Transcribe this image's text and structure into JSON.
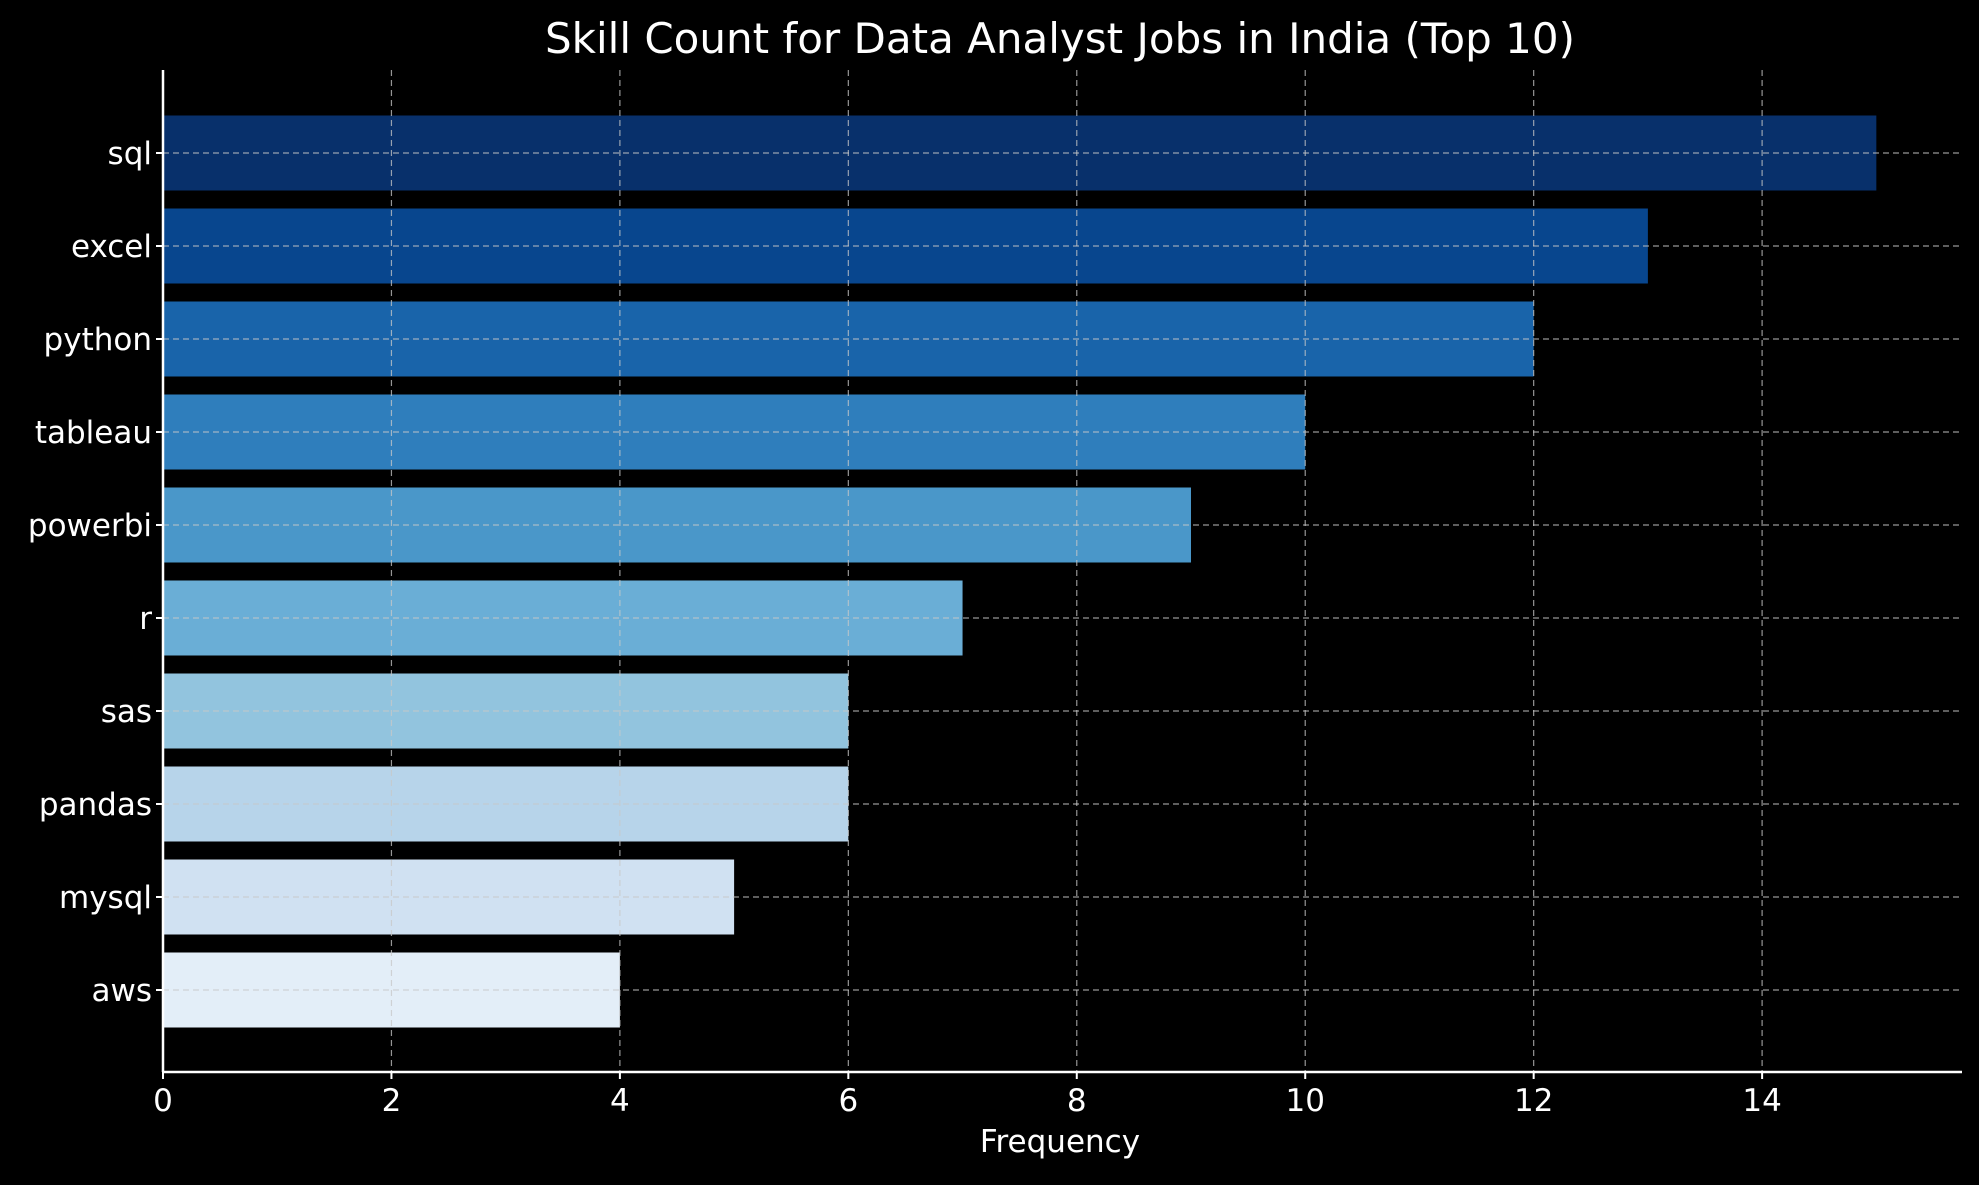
{
  "chart_data": {
    "type": "bar",
    "orientation": "horizontal",
    "title": "Skill Count for Data Analyst Jobs in India (Top 10)",
    "xlabel": "Frequency",
    "ylabel": "",
    "categories": [
      "sql",
      "excel",
      "python",
      "tableau",
      "powerbi",
      "r",
      "sas",
      "pandas",
      "mysql",
      "aws"
    ],
    "values": [
      15,
      13,
      12,
      10,
      9,
      7,
      6,
      6,
      5,
      4
    ],
    "xlim": [
      0,
      15.75
    ],
    "xticks": [
      0,
      2,
      4,
      6,
      8,
      10,
      12,
      14
    ],
    "grid": true,
    "background": "#000000",
    "colors": [
      "#08306b",
      "#08468e",
      "#1964aa",
      "#2f7ebc",
      "#4a97c9",
      "#6aaed6",
      "#92c4de",
      "#b7d4ea",
      "#d0e1f2",
      "#e3eef8"
    ]
  }
}
